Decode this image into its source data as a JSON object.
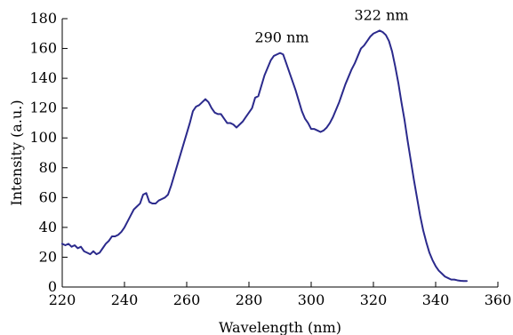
{
  "chart_data": {
    "type": "line",
    "xlabel": "Wavelength (nm)",
    "ylabel": "Intensity (a.u.)",
    "xlim": [
      220,
      360
    ],
    "ylim": [
      0,
      180
    ],
    "x_ticks": [
      220,
      240,
      260,
      280,
      300,
      320,
      340,
      360
    ],
    "y_ticks": [
      0,
      20,
      40,
      60,
      80,
      100,
      120,
      140,
      160,
      180
    ],
    "grid": false,
    "legend": "none",
    "series": [
      {
        "color": "#2b2a8c",
        "points": [
          [
            220,
            29
          ],
          [
            221,
            28
          ],
          [
            222,
            29
          ],
          [
            223,
            27
          ],
          [
            224,
            28
          ],
          [
            225,
            26
          ],
          [
            226,
            27
          ],
          [
            227,
            24
          ],
          [
            228,
            23
          ],
          [
            229,
            22
          ],
          [
            230,
            24
          ],
          [
            231,
            22
          ],
          [
            232,
            23
          ],
          [
            233,
            26
          ],
          [
            234,
            29
          ],
          [
            235,
            31
          ],
          [
            236,
            34
          ],
          [
            237,
            34
          ],
          [
            238,
            35
          ],
          [
            239,
            37
          ],
          [
            240,
            40
          ],
          [
            241,
            44
          ],
          [
            242,
            48
          ],
          [
            243,
            52
          ],
          [
            244,
            54
          ],
          [
            245,
            56
          ],
          [
            246,
            62
          ],
          [
            247,
            63
          ],
          [
            248,
            57
          ],
          [
            249,
            56
          ],
          [
            250,
            56
          ],
          [
            251,
            58
          ],
          [
            252,
            59
          ],
          [
            253,
            60
          ],
          [
            254,
            62
          ],
          [
            255,
            68
          ],
          [
            256,
            75
          ],
          [
            257,
            82
          ],
          [
            258,
            89
          ],
          [
            259,
            96
          ],
          [
            260,
            103
          ],
          [
            261,
            110
          ],
          [
            262,
            118
          ],
          [
            263,
            121
          ],
          [
            264,
            122
          ],
          [
            265,
            124
          ],
          [
            266,
            126
          ],
          [
            267,
            124
          ],
          [
            268,
            120
          ],
          [
            269,
            117
          ],
          [
            270,
            116
          ],
          [
            271,
            116
          ],
          [
            272,
            113
          ],
          [
            273,
            110
          ],
          [
            274,
            110
          ],
          [
            275,
            109
          ],
          [
            276,
            107
          ],
          [
            277,
            109
          ],
          [
            278,
            111
          ],
          [
            279,
            114
          ],
          [
            280,
            117
          ],
          [
            281,
            120
          ],
          [
            282,
            127
          ],
          [
            283,
            128
          ],
          [
            284,
            135
          ],
          [
            285,
            142
          ],
          [
            286,
            147
          ],
          [
            287,
            152
          ],
          [
            288,
            155
          ],
          [
            289,
            156
          ],
          [
            290,
            157
          ],
          [
            291,
            156
          ],
          [
            292,
            150
          ],
          [
            293,
            144
          ],
          [
            294,
            138
          ],
          [
            295,
            132
          ],
          [
            296,
            125
          ],
          [
            297,
            118
          ],
          [
            298,
            113
          ],
          [
            299,
            110
          ],
          [
            300,
            106
          ],
          [
            301,
            106
          ],
          [
            302,
            105
          ],
          [
            303,
            104
          ],
          [
            304,
            105
          ],
          [
            305,
            107
          ],
          [
            306,
            110
          ],
          [
            307,
            114
          ],
          [
            308,
            119
          ],
          [
            309,
            124
          ],
          [
            310,
            130
          ],
          [
            311,
            136
          ],
          [
            312,
            141
          ],
          [
            313,
            146
          ],
          [
            314,
            150
          ],
          [
            315,
            155
          ],
          [
            316,
            160
          ],
          [
            317,
            162
          ],
          [
            318,
            165
          ],
          [
            319,
            168
          ],
          [
            320,
            170
          ],
          [
            321,
            171
          ],
          [
            322,
            172
          ],
          [
            323,
            171
          ],
          [
            324,
            169
          ],
          [
            325,
            165
          ],
          [
            326,
            158
          ],
          [
            327,
            148
          ],
          [
            328,
            137
          ],
          [
            329,
            124
          ],
          [
            330,
            112
          ],
          [
            331,
            98
          ],
          [
            332,
            85
          ],
          [
            333,
            72
          ],
          [
            334,
            60
          ],
          [
            335,
            48
          ],
          [
            336,
            38
          ],
          [
            337,
            30
          ],
          [
            338,
            23
          ],
          [
            339,
            18
          ],
          [
            340,
            14
          ],
          [
            341,
            11
          ],
          [
            342,
            9
          ],
          [
            343,
            7
          ],
          [
            344,
            6
          ],
          [
            345,
            5
          ],
          [
            346,
            5
          ],
          [
            347,
            4.5
          ],
          [
            348,
            4.2
          ],
          [
            349,
            4
          ],
          [
            350,
            4
          ]
        ]
      }
    ],
    "annotations": [
      {
        "text": "290 nm",
        "x": 290,
        "y": 157
      },
      {
        "text": "322 nm",
        "x": 322,
        "y": 172
      }
    ]
  }
}
